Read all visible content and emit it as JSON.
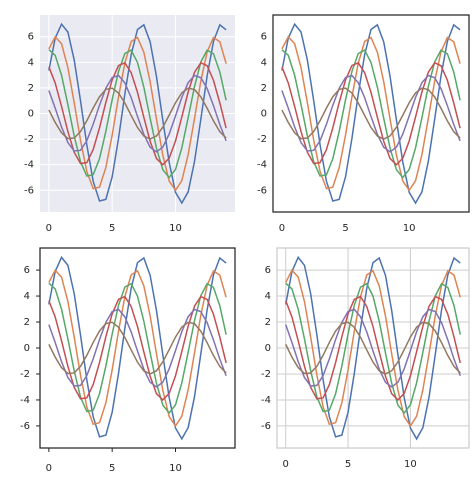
{
  "chart_data": [
    {
      "type": "line",
      "style": "darkgrid",
      "background": "#eaeaf2",
      "grid": true,
      "grid_color": "#ffffff",
      "spine_color": null,
      "ticks": false,
      "x": [
        0,
        0.5,
        1,
        1.5,
        2,
        2.5,
        3,
        3.5,
        4,
        4.5,
        5,
        5.5,
        6,
        6.5,
        7,
        7.5,
        8,
        8.5,
        9,
        9.5,
        10,
        10.5,
        11,
        11.5,
        12,
        12.5,
        13,
        13.5,
        14
      ],
      "xlim": [
        -0.7,
        14.7
      ],
      "ylim": [
        -7.7,
        7.7
      ],
      "xticks": [
        0,
        5,
        10
      ],
      "yticks": [
        -6,
        -4,
        -2,
        0,
        2,
        4,
        6
      ],
      "series": [
        {
          "color": "#4c72b0",
          "values": [
            3.36,
            5.89,
            6.98,
            6.37,
            4.19,
            0.99,
            -2.46,
            -5.3,
            -6.84,
            -6.71,
            -4.94,
            -1.96,
            1.51,
            4.6,
            6.57,
            6.93,
            5.59,
            2.88,
            -0.53,
            -3.81,
            -6.16,
            -7.0,
            -6.13,
            -3.76,
            -0.46,
            2.94,
            5.63,
            6.93,
            6.54
          ]
        },
        {
          "color": "#dd8452",
          "values": [
            5.05,
            5.99,
            5.46,
            3.59,
            0.85,
            -2.1,
            -4.54,
            -5.87,
            -5.75,
            -4.23,
            -1.68,
            1.29,
            3.94,
            5.63,
            5.94,
            4.79,
            2.47,
            -0.45,
            -3.26,
            -5.28,
            -6.0,
            -5.25,
            -3.22,
            -0.4,
            2.52,
            4.82,
            5.94,
            5.61,
            3.9
          ]
        },
        {
          "color": "#55a868",
          "values": [
            4.99,
            4.55,
            2.99,
            0.71,
            -1.75,
            -3.78,
            -4.89,
            -4.79,
            -3.53,
            -1.4,
            1.08,
            3.29,
            4.69,
            4.95,
            3.99,
            2.06,
            -0.38,
            -2.72,
            -4.4,
            -5.0,
            -4.38,
            -2.68,
            -0.33,
            2.1,
            4.02,
            4.95,
            4.67,
            3.25,
            1.03
          ]
        },
        {
          "color": "#c44e52",
          "values": [
            3.64,
            2.39,
            0.56,
            -1.4,
            -3.03,
            -3.91,
            -3.84,
            -2.82,
            -1.12,
            0.86,
            2.63,
            3.75,
            3.96,
            3.19,
            1.65,
            -0.3,
            -2.18,
            -3.52,
            -4.0,
            -3.5,
            -2.15,
            -0.27,
            1.68,
            3.22,
            3.96,
            3.74,
            2.6,
            0.83,
            -1.15
          ]
        },
        {
          "color": "#8172b3",
          "values": [
            1.8,
            0.42,
            -1.05,
            -2.27,
            -2.93,
            -2.88,
            -2.12,
            -0.84,
            0.65,
            1.97,
            2.81,
            2.97,
            2.4,
            1.24,
            -0.23,
            -1.63,
            -2.64,
            -3.0,
            -2.63,
            -1.61,
            -0.2,
            1.26,
            2.41,
            2.97,
            2.8,
            1.95,
            0.62,
            -0.86,
            -2.14
          ]
        },
        {
          "color": "#937860",
          "values": [
            0.28,
            -0.7,
            -1.51,
            -1.96,
            -1.92,
            -1.41,
            -0.56,
            0.43,
            1.31,
            1.88,
            1.98,
            1.6,
            0.82,
            -0.15,
            -1.09,
            -1.76,
            -2.0,
            -1.75,
            -1.07,
            -0.13,
            0.84,
            1.61,
            1.98,
            1.87,
            1.3,
            0.41,
            -0.58,
            -1.42,
            -1.92
          ]
        }
      ]
    },
    {
      "type": "line",
      "style": "white",
      "background": "#ffffff",
      "grid": false,
      "grid_color": null,
      "spine_color": "#262626",
      "ticks": false,
      "x": [
        0,
        0.5,
        1,
        1.5,
        2,
        2.5,
        3,
        3.5,
        4,
        4.5,
        5,
        5.5,
        6,
        6.5,
        7,
        7.5,
        8,
        8.5,
        9,
        9.5,
        10,
        10.5,
        11,
        11.5,
        12,
        12.5,
        13,
        13.5,
        14
      ],
      "xlim": [
        -0.7,
        14.7
      ],
      "ylim": [
        -7.7,
        7.7
      ],
      "xticks": [
        0,
        5,
        10
      ],
      "yticks": [
        -6,
        -4,
        -2,
        0,
        2,
        4,
        6
      ],
      "series": [
        {
          "color": "#4c72b0",
          "values": [
            3.36,
            5.89,
            6.98,
            6.37,
            4.19,
            0.99,
            -2.46,
            -5.3,
            -6.84,
            -6.71,
            -4.94,
            -1.96,
            1.51,
            4.6,
            6.57,
            6.93,
            5.59,
            2.88,
            -0.53,
            -3.81,
            -6.16,
            -7.0,
            -6.13,
            -3.76,
            -0.46,
            2.94,
            5.63,
            6.93,
            6.54
          ]
        },
        {
          "color": "#dd8452",
          "values": [
            5.05,
            5.99,
            5.46,
            3.59,
            0.85,
            -2.1,
            -4.54,
            -5.87,
            -5.75,
            -4.23,
            -1.68,
            1.29,
            3.94,
            5.63,
            5.94,
            4.79,
            2.47,
            -0.45,
            -3.26,
            -5.28,
            -6.0,
            -5.25,
            -3.22,
            -0.4,
            2.52,
            4.82,
            5.94,
            5.61,
            3.9
          ]
        },
        {
          "color": "#55a868",
          "values": [
            4.99,
            4.55,
            2.99,
            0.71,
            -1.75,
            -3.78,
            -4.89,
            -4.79,
            -3.53,
            -1.4,
            1.08,
            3.29,
            4.69,
            4.95,
            3.99,
            2.06,
            -0.38,
            -2.72,
            -4.4,
            -5.0,
            -4.38,
            -2.68,
            -0.33,
            2.1,
            4.02,
            4.95,
            4.67,
            3.25,
            1.03
          ]
        },
        {
          "color": "#c44e52",
          "values": [
            3.64,
            2.39,
            0.56,
            -1.4,
            -3.03,
            -3.91,
            -3.84,
            -2.82,
            -1.12,
            0.86,
            2.63,
            3.75,
            3.96,
            3.19,
            1.65,
            -0.3,
            -2.18,
            -3.52,
            -4.0,
            -3.5,
            -2.15,
            -0.27,
            1.68,
            3.22,
            3.96,
            3.74,
            2.6,
            0.83,
            -1.15
          ]
        },
        {
          "color": "#8172b3",
          "values": [
            1.8,
            0.42,
            -1.05,
            -2.27,
            -2.93,
            -2.88,
            -2.12,
            -0.84,
            0.65,
            1.97,
            2.81,
            2.97,
            2.4,
            1.24,
            -0.23,
            -1.63,
            -2.64,
            -3.0,
            -2.63,
            -1.61,
            -0.2,
            1.26,
            2.41,
            2.97,
            2.8,
            1.95,
            0.62,
            -0.86,
            -2.14
          ]
        },
        {
          "color": "#937860",
          "values": [
            0.28,
            -0.7,
            -1.51,
            -1.96,
            -1.92,
            -1.41,
            -0.56,
            0.43,
            1.31,
            1.88,
            1.98,
            1.6,
            0.82,
            -0.15,
            -1.09,
            -1.76,
            -2.0,
            -1.75,
            -1.07,
            -0.13,
            0.84,
            1.61,
            1.98,
            1.87,
            1.3,
            0.41,
            -0.58,
            -1.42,
            -1.92
          ]
        }
      ]
    },
    {
      "type": "line",
      "style": "ticks",
      "background": "#ffffff",
      "grid": false,
      "grid_color": null,
      "spine_color": "#262626",
      "ticks": true,
      "x": [
        0,
        0.5,
        1,
        1.5,
        2,
        2.5,
        3,
        3.5,
        4,
        4.5,
        5,
        5.5,
        6,
        6.5,
        7,
        7.5,
        8,
        8.5,
        9,
        9.5,
        10,
        10.5,
        11,
        11.5,
        12,
        12.5,
        13,
        13.5,
        14
      ],
      "xlim": [
        -0.7,
        14.7
      ],
      "ylim": [
        -7.7,
        7.7
      ],
      "xticks": [
        0,
        5,
        10
      ],
      "yticks": [
        -6,
        -4,
        -2,
        0,
        2,
        4,
        6
      ],
      "series": [
        {
          "color": "#4c72b0",
          "values": [
            3.36,
            5.89,
            6.98,
            6.37,
            4.19,
            0.99,
            -2.46,
            -5.3,
            -6.84,
            -6.71,
            -4.94,
            -1.96,
            1.51,
            4.6,
            6.57,
            6.93,
            5.59,
            2.88,
            -0.53,
            -3.81,
            -6.16,
            -7.0,
            -6.13,
            -3.76,
            -0.46,
            2.94,
            5.63,
            6.93,
            6.54
          ]
        },
        {
          "color": "#dd8452",
          "values": [
            5.05,
            5.99,
            5.46,
            3.59,
            0.85,
            -2.1,
            -4.54,
            -5.87,
            -5.75,
            -4.23,
            -1.68,
            1.29,
            3.94,
            5.63,
            5.94,
            4.79,
            2.47,
            -0.45,
            -3.26,
            -5.28,
            -6.0,
            -5.25,
            -3.22,
            -0.4,
            2.52,
            4.82,
            5.94,
            5.61,
            3.9
          ]
        },
        {
          "color": "#55a868",
          "values": [
            4.99,
            4.55,
            2.99,
            0.71,
            -1.75,
            -3.78,
            -4.89,
            -4.79,
            -3.53,
            -1.4,
            1.08,
            3.29,
            4.69,
            4.95,
            3.99,
            2.06,
            -0.38,
            -2.72,
            -4.4,
            -5.0,
            -4.38,
            -2.68,
            -0.33,
            2.1,
            4.02,
            4.95,
            4.67,
            3.25,
            1.03
          ]
        },
        {
          "color": "#c44e52",
          "values": [
            3.64,
            2.39,
            0.56,
            -1.4,
            -3.03,
            -3.91,
            -3.84,
            -2.82,
            -1.12,
            0.86,
            2.63,
            3.75,
            3.96,
            3.19,
            1.65,
            -0.3,
            -2.18,
            -3.52,
            -4.0,
            -3.5,
            -2.15,
            -0.27,
            1.68,
            3.22,
            3.96,
            3.74,
            2.6,
            0.83,
            -1.15
          ]
        },
        {
          "color": "#8172b3",
          "values": [
            1.8,
            0.42,
            -1.05,
            -2.27,
            -2.93,
            -2.88,
            -2.12,
            -0.84,
            0.65,
            1.97,
            2.81,
            2.97,
            2.4,
            1.24,
            -0.23,
            -1.63,
            -2.64,
            -3.0,
            -2.63,
            -1.61,
            -0.2,
            1.26,
            2.41,
            2.97,
            2.8,
            1.95,
            0.62,
            -0.86,
            -2.14
          ]
        },
        {
          "color": "#937860",
          "values": [
            0.28,
            -0.7,
            -1.51,
            -1.96,
            -1.92,
            -1.41,
            -0.56,
            0.43,
            1.31,
            1.88,
            1.98,
            1.6,
            0.82,
            -0.15,
            -1.09,
            -1.76,
            -2.0,
            -1.75,
            -1.07,
            -0.13,
            0.84,
            1.61,
            1.98,
            1.87,
            1.3,
            0.41,
            -0.58,
            -1.42,
            -1.92
          ]
        }
      ]
    },
    {
      "type": "line",
      "style": "whitegrid",
      "background": "#ffffff",
      "grid": true,
      "grid_color": "#cccccc",
      "spine_color": "#cccccc",
      "ticks": false,
      "x": [
        0,
        0.5,
        1,
        1.5,
        2,
        2.5,
        3,
        3.5,
        4,
        4.5,
        5,
        5.5,
        6,
        6.5,
        7,
        7.5,
        8,
        8.5,
        9,
        9.5,
        10,
        10.5,
        11,
        11.5,
        12,
        12.5,
        13,
        13.5,
        14
      ],
      "xlim": [
        -0.7,
        14.7
      ],
      "ylim": [
        -7.7,
        7.7
      ],
      "xticks": [
        0,
        5,
        10
      ],
      "yticks": [
        -6,
        -4,
        -2,
        0,
        2,
        4,
        6
      ],
      "series": [
        {
          "color": "#4c72b0",
          "values": [
            3.36,
            5.89,
            6.98,
            6.37,
            4.19,
            0.99,
            -2.46,
            -5.3,
            -6.84,
            -6.71,
            -4.94,
            -1.96,
            1.51,
            4.6,
            6.57,
            6.93,
            5.59,
            2.88,
            -0.53,
            -3.81,
            -6.16,
            -7.0,
            -6.13,
            -3.76,
            -0.46,
            2.94,
            5.63,
            6.93,
            6.54
          ]
        },
        {
          "color": "#dd8452",
          "values": [
            5.05,
            5.99,
            5.46,
            3.59,
            0.85,
            -2.1,
            -4.54,
            -5.87,
            -5.75,
            -4.23,
            -1.68,
            1.29,
            3.94,
            5.63,
            5.94,
            4.79,
            2.47,
            -0.45,
            -3.26,
            -5.28,
            -6.0,
            -5.25,
            -3.22,
            -0.4,
            2.52,
            4.82,
            5.94,
            5.61,
            3.9
          ]
        },
        {
          "color": "#55a868",
          "values": [
            4.99,
            4.55,
            2.99,
            0.71,
            -1.75,
            -3.78,
            -4.89,
            -4.79,
            -3.53,
            -1.4,
            1.08,
            3.29,
            4.69,
            4.95,
            3.99,
            2.06,
            -0.38,
            -2.72,
            -4.4,
            -5.0,
            -4.38,
            -2.68,
            -0.33,
            2.1,
            4.02,
            4.95,
            4.67,
            3.25,
            1.03
          ]
        },
        {
          "color": "#c44e52",
          "values": [
            3.64,
            2.39,
            0.56,
            -1.4,
            -3.03,
            -3.91,
            -3.84,
            -2.82,
            -1.12,
            0.86,
            2.63,
            3.75,
            3.96,
            3.19,
            1.65,
            -0.3,
            -2.18,
            -3.52,
            -4.0,
            -3.5,
            -2.15,
            -0.27,
            1.68,
            3.22,
            3.96,
            3.74,
            2.6,
            0.83,
            -1.15
          ]
        },
        {
          "color": "#8172b3",
          "values": [
            1.8,
            0.42,
            -1.05,
            -2.27,
            -2.93,
            -2.88,
            -2.12,
            -0.84,
            0.65,
            1.97,
            2.81,
            2.97,
            2.4,
            1.24,
            -0.23,
            -1.63,
            -2.64,
            -3.0,
            -2.63,
            -1.61,
            -0.2,
            1.26,
            2.41,
            2.97,
            2.8,
            1.95,
            0.62,
            -0.86,
            -2.14
          ]
        },
        {
          "color": "#937860",
          "values": [
            0.28,
            -0.7,
            -1.51,
            -1.96,
            -1.92,
            -1.41,
            -0.56,
            0.43,
            1.31,
            1.88,
            1.98,
            1.6,
            0.82,
            -0.15,
            -1.09,
            -1.76,
            -2.0,
            -1.75,
            -1.07,
            -0.13,
            0.84,
            1.61,
            1.98,
            1.87,
            1.3,
            0.41,
            -0.58,
            -1.42,
            -1.92
          ]
        }
      ]
    }
  ]
}
